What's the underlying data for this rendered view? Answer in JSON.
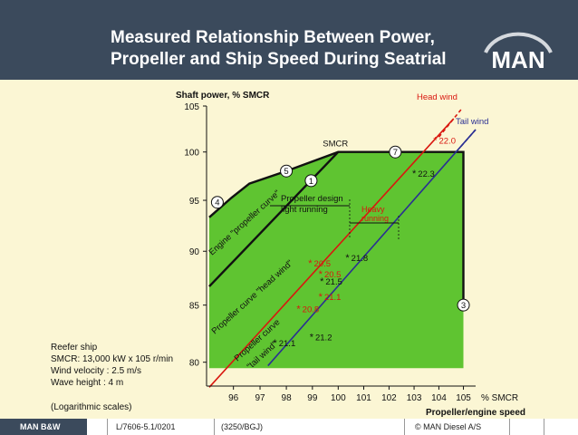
{
  "header": {
    "title_line1": "Measured Relationship Between Power,",
    "title_line2": "Propeller and Ship Speed During Seatrial",
    "logo_text": "MAN"
  },
  "notes": {
    "ship": "Reefer ship",
    "smcr": "SMCR: 13,000 kW x 105 r/min",
    "wind": "Wind velocity :  2.5 m/s",
    "wave": "Wave height   :  4 m",
    "scales": "(Logarithmic scales)"
  },
  "footer": {
    "brand": "MAN B&W",
    "doc": "L/7606-5.1/0201",
    "ref": "(3250/BGJ)",
    "copyright": "© MAN Diesel A/S"
  },
  "colors": {
    "header_bg": "#3b4a5c",
    "field_green": "#5fc431",
    "head_wind_red": "#d9170f",
    "tail_wind_blue": "#2a2f93",
    "background": "#fbf6d4"
  },
  "chart_data": {
    "type": "line",
    "scale": "log",
    "ylabel": "Shaft power, % SMCR",
    "xlabel_unit": "% SMCR",
    "xlabel": "Propeller/engine speed",
    "xlim": [
      95,
      105.5
    ],
    "ylim": [
      78,
      105
    ],
    "x_ticks": [
      "96",
      "97",
      "98",
      "99",
      "100",
      "101",
      "102",
      "103",
      "104",
      "105"
    ],
    "y_ticks": [
      "80",
      "85",
      "90",
      "95",
      "100",
      "105"
    ],
    "layout_envelope": [
      [
        95.1,
        93.3
      ],
      [
        95.9,
        95.2
      ],
      [
        96.6,
        96.7
      ],
      [
        98.0,
        98.0
      ],
      [
        100.0,
        100.0
      ],
      [
        105.0,
        100.0
      ],
      [
        105.0,
        79.5
      ],
      [
        95.1,
        79.5
      ]
    ],
    "series": [
      {
        "name": "Head wind",
        "color": "#d9170f",
        "points": [
          [
            95.1,
            77.9
          ],
          [
            104.6,
            103.6
          ]
        ]
      },
      {
        "name": "Tail wind",
        "color": "#2a2f93",
        "points": [
          [
            97.3,
            79.7
          ],
          [
            105.5,
            102.4
          ]
        ]
      },
      {
        "name": "Engine \"propeller curve\"",
        "color": "#111111",
        "points": [
          [
            95.1,
            86.7
          ],
          [
            100.0,
            100.0
          ]
        ]
      }
    ],
    "engine_limit": {
      "name": "Engine limit",
      "points": [
        [
          95.1,
          93.3
        ],
        [
          95.9,
          95.2
        ],
        [
          96.6,
          96.7
        ],
        [
          98.0,
          98.0
        ],
        [
          100.0,
          100.0
        ],
        [
          105.0,
          100.0
        ],
        [
          105.0,
          85.0
        ]
      ]
    },
    "points_labels": [
      {
        "label": "22.0",
        "x": 104.15,
        "y": 101.3,
        "color": "#d9170f"
      },
      {
        "label": "22.3",
        "x": 103.3,
        "y": 97.8,
        "color": "#111111"
      },
      {
        "label": "21.8",
        "x": 100.65,
        "y": 89.4,
        "color": "#111111"
      },
      {
        "label": "20.5",
        "x": 99.2,
        "y": 88.9,
        "color": "#d9170f"
      },
      {
        "label": "20.5",
        "x": 99.6,
        "y": 87.9,
        "color": "#d9170f"
      },
      {
        "label": "21.5",
        "x": 99.65,
        "y": 87.2,
        "color": "#111111"
      },
      {
        "label": "21.1",
        "x": 99.6,
        "y": 85.8,
        "color": "#d9170f"
      },
      {
        "label": "20.8",
        "x": 98.75,
        "y": 84.7,
        "color": "#d9170f"
      },
      {
        "label": "21.2",
        "x": 99.25,
        "y": 82.2,
        "color": "#111111"
      },
      {
        "label": "21.1",
        "x": 97.85,
        "y": 81.7,
        "color": "#111111"
      }
    ],
    "markers": [
      {
        "label": "1",
        "x": 98.95,
        "y": 97.0
      },
      {
        "label": "3",
        "x": 105.0,
        "y": 85.0
      },
      {
        "label": "4",
        "x": 95.4,
        "y": 94.8
      },
      {
        "label": "5",
        "x": 98.0,
        "y": 98.0
      },
      {
        "label": "7",
        "x": 102.25,
        "y": 100.0
      }
    ],
    "annotations": {
      "smcr": "SMCR",
      "propeller_design_line1": "Propeller design",
      "propeller_design_line2": "light running",
      "heavy_line1": "Heavy",
      "heavy_line2": "running",
      "engine_curve": "Engine \"propeller curve\"",
      "head_wind_curve": "Propeller curve \"head wind\"",
      "tail_wind_curve_line1": "Propeller curve",
      "tail_wind_curve_line2": "\"tail wind\""
    }
  }
}
